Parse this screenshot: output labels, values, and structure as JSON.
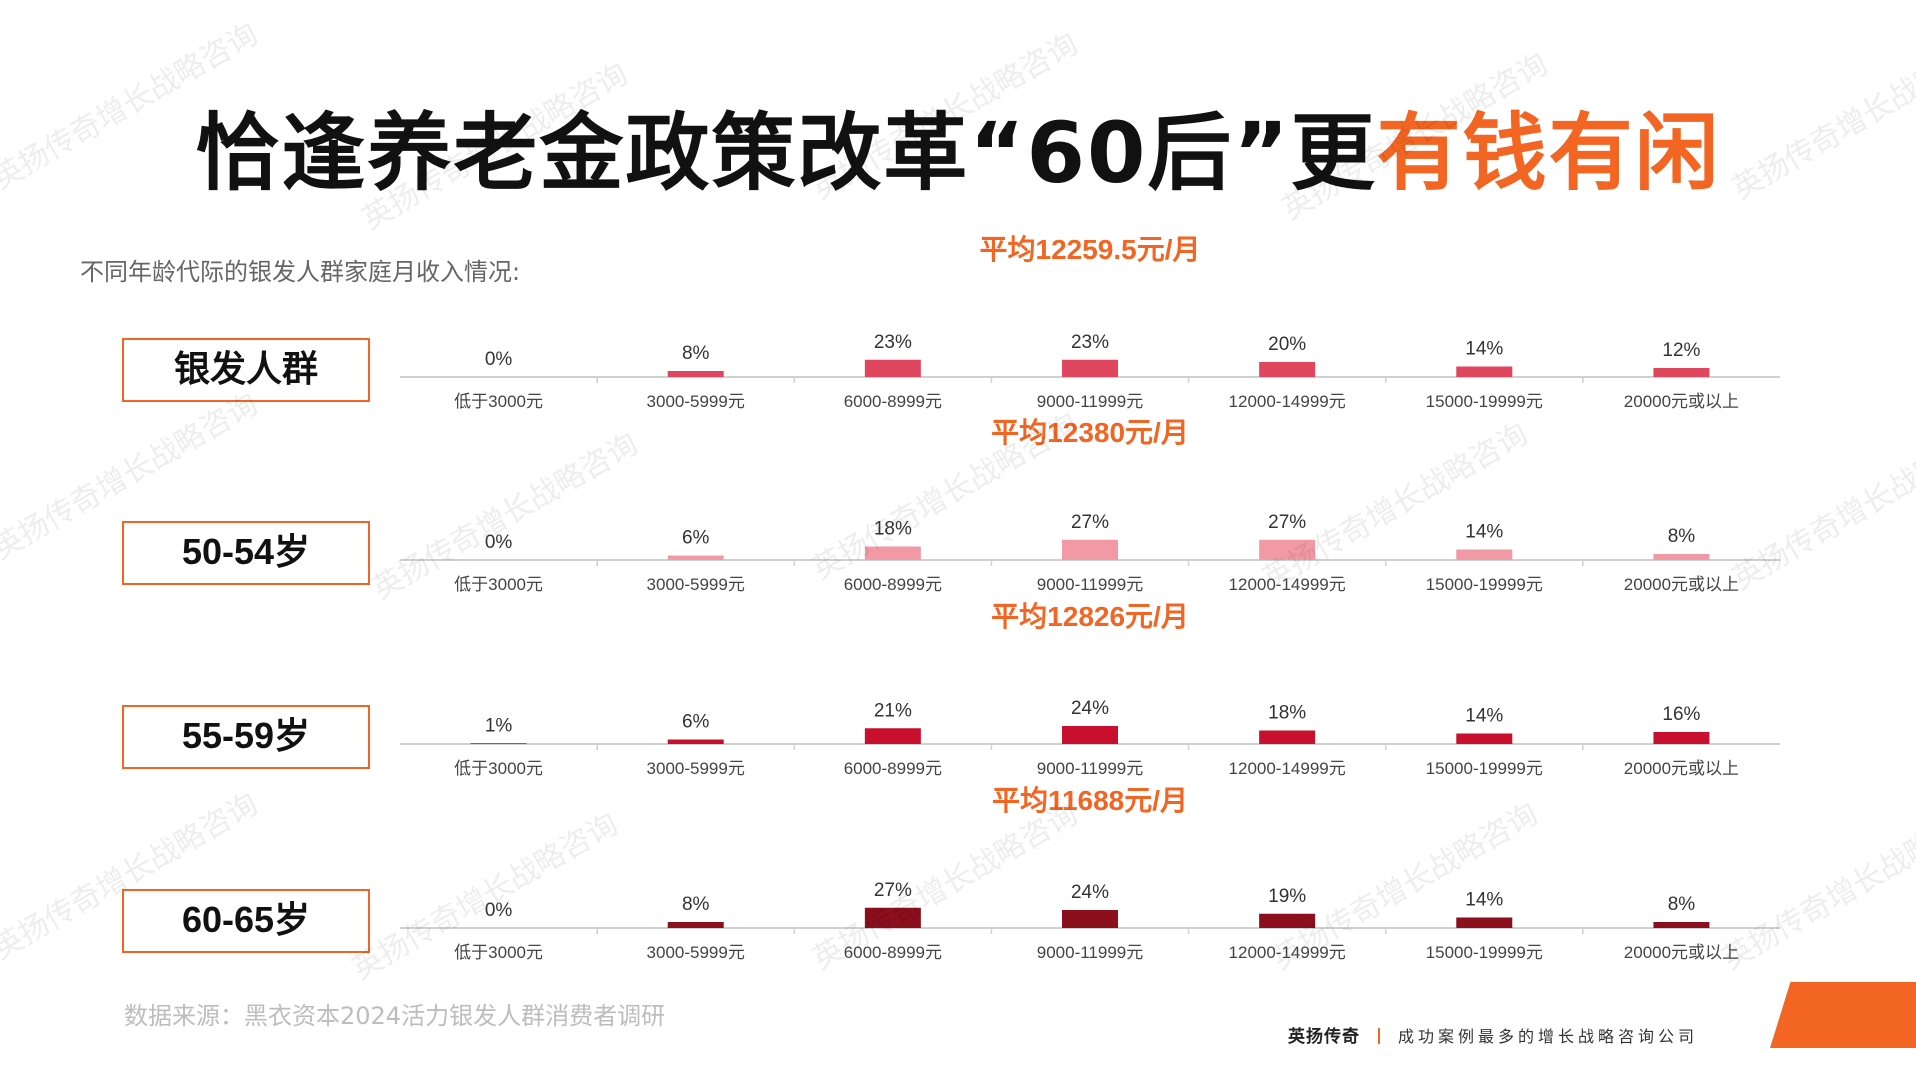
{
  "title": {
    "main": "恰逢养老金政策改革“60后”更",
    "highlight": "有钱有闲"
  },
  "subtitle": "不同年龄代际的银发人群家庭月收入情况:",
  "source": "数据来源：黑衣资本2024活力银发人群消费者调研",
  "footer": {
    "brand": "英扬传奇",
    "slogan": "成功案例最多的增长战略咨询公司"
  },
  "watermark": "英扬传奇增长战略咨询",
  "colors": {
    "accent": "#f26522"
  },
  "chart_data": [
    {
      "type": "bar",
      "group": "银发人群",
      "average": "平均12259.5元/月",
      "categories": [
        "低于3000元",
        "3000-5999元",
        "6000-8999元",
        "9000-11999元",
        "12000-14999元",
        "15000-19999元",
        "20000元或以上"
      ],
      "values": [
        0,
        8,
        23,
        23,
        20,
        14,
        12
      ],
      "value_labels": [
        "0%",
        "8%",
        "23%",
        "23%",
        "20%",
        "14%",
        "12%"
      ],
      "color": "#e0475f"
    },
    {
      "type": "bar",
      "group": "50-54岁",
      "average": "平均12380元/月",
      "categories": [
        "低于3000元",
        "3000-5999元",
        "6000-8999元",
        "9000-11999元",
        "12000-14999元",
        "15000-19999元",
        "20000元或以上"
      ],
      "values": [
        0,
        6,
        18,
        27,
        27,
        14,
        8
      ],
      "value_labels": [
        "0%",
        "6%",
        "18%",
        "27%",
        "27%",
        "14%",
        "8%"
      ],
      "color": "#f19aa6"
    },
    {
      "type": "bar",
      "group": "55-59岁",
      "average": "平均12826元/月",
      "categories": [
        "低于3000元",
        "3000-5999元",
        "6000-8999元",
        "9000-11999元",
        "12000-14999元",
        "15000-19999元",
        "20000元或以上"
      ],
      "values": [
        1,
        6,
        21,
        24,
        18,
        14,
        16
      ],
      "value_labels": [
        "1%",
        "6%",
        "21%",
        "24%",
        "18%",
        "14%",
        "16%"
      ],
      "color": "#c8102e"
    },
    {
      "type": "bar",
      "group": "60-65岁",
      "average": "平均11688元/月",
      "categories": [
        "低于3000元",
        "3000-5999元",
        "6000-8999元",
        "9000-11999元",
        "12000-14999元",
        "15000-19999元",
        "20000元或以上"
      ],
      "values": [
        0,
        8,
        27,
        24,
        19,
        14,
        8
      ],
      "value_labels": [
        "0%",
        "8%",
        "27%",
        "24%",
        "19%",
        "14%",
        "8%"
      ],
      "color": "#8b0f1c"
    }
  ]
}
